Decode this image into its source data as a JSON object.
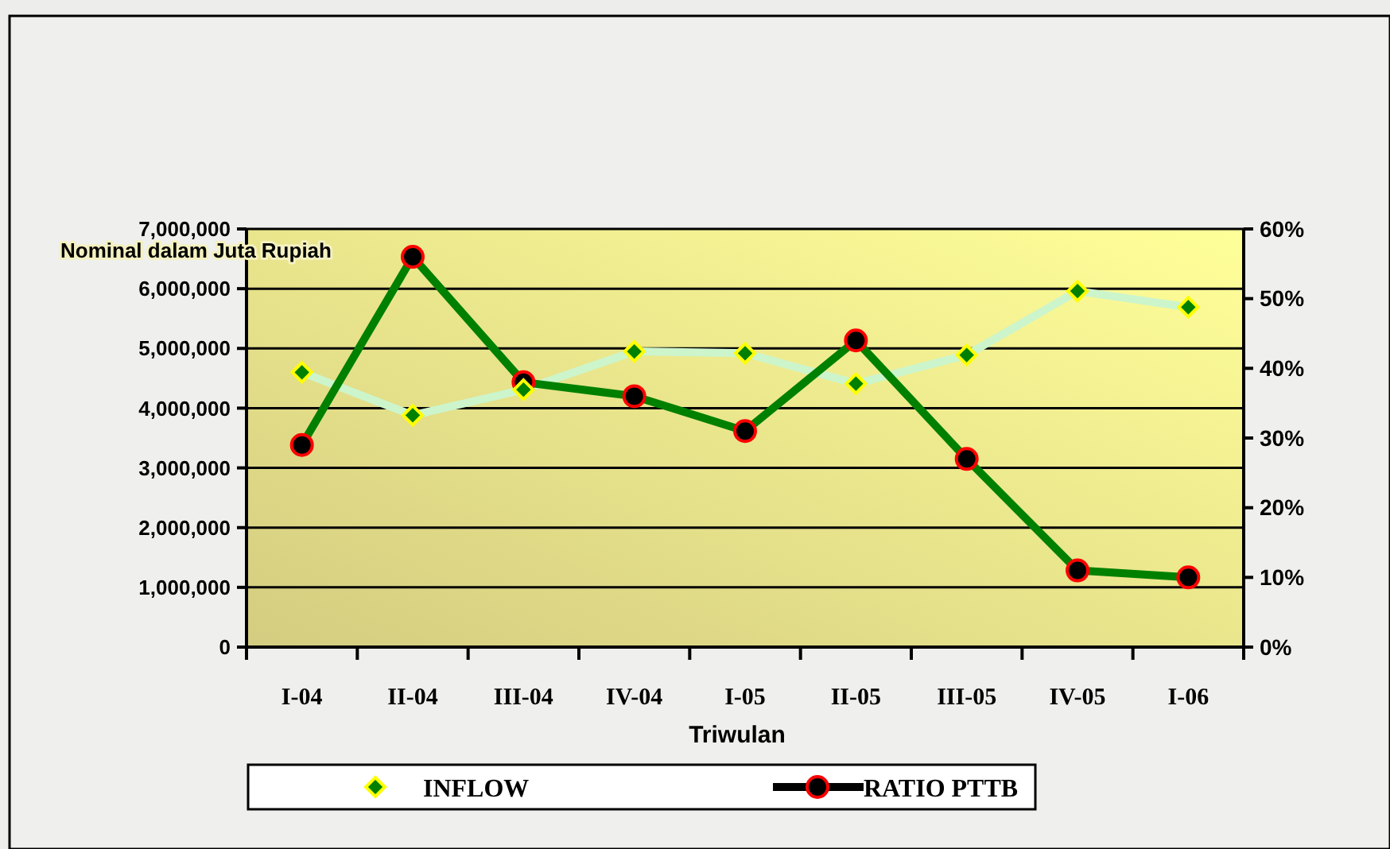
{
  "chart_data": {
    "type": "line",
    "xlabel": "Triwulan",
    "ylabel": "Nominal dalam Juta Rupiah",
    "categories": [
      "I-04",
      "II-04",
      "III-04",
      "IV-04",
      "I-05",
      "II-05",
      "III-05",
      "IV-05",
      "I-06"
    ],
    "series": [
      {
        "name": "INFLOW",
        "color": "#ccf5cc",
        "marker": "diamond",
        "values": [
          4600000,
          3880000,
          4310000,
          4950000,
          4920000,
          4410000,
          4890000,
          5960000,
          5690000
        ]
      },
      {
        "name": "RATIO PTTB",
        "color": "#008000",
        "marker": "circle",
        "axis": "y2",
        "values": [
          29,
          56,
          38,
          36,
          31,
          44,
          27,
          11,
          10
        ]
      }
    ],
    "ylim": [
      0,
      7000000
    ],
    "yticks": [
      {
        "value": 0,
        "label": "0"
      },
      {
        "value": 1000000,
        "label": "1,000,000"
      },
      {
        "value": 2000000,
        "label": "2,000,000"
      },
      {
        "value": 3000000,
        "label": "3,000,000"
      },
      {
        "value": 4000000,
        "label": "4,000,000"
      },
      {
        "value": 5000000,
        "label": "5,000,000"
      },
      {
        "value": 6000000,
        "label": "6,000,000"
      },
      {
        "value": 7000000,
        "label": "7,000,000"
      }
    ],
    "y2lim": [
      0,
      60
    ],
    "y2ticks": [
      {
        "value": 0,
        "label": "0%"
      },
      {
        "value": 10,
        "label": "10%"
      },
      {
        "value": 20,
        "label": "20%"
      },
      {
        "value": 30,
        "label": "30%"
      },
      {
        "value": 40,
        "label": "40%"
      },
      {
        "value": 50,
        "label": "50%"
      },
      {
        "value": 60,
        "label": "60%"
      }
    ],
    "grid": "y",
    "legend": "bottom"
  }
}
